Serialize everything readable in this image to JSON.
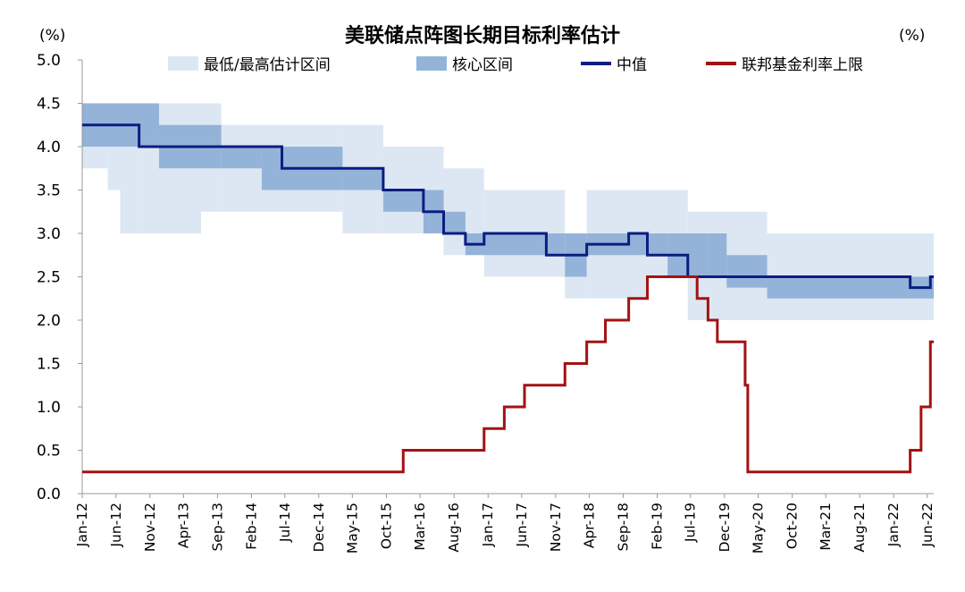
{
  "chart_data": {
    "type": "line",
    "title": "美联储点阵图长期目标利率估计",
    "ylabel_left": "(%)",
    "ylabel_right": "(%)",
    "ylim": [
      0,
      5
    ],
    "yticks": [
      "0.0",
      "0.5",
      "1.0",
      "1.5",
      "2.0",
      "2.5",
      "3.0",
      "3.5",
      "4.0",
      "4.5",
      "5.0"
    ],
    "x_range": [
      "2012-01-01",
      "2022-06-30"
    ],
    "x_ticks": [
      {
        "label": "Jan-12",
        "date": "2012-01-01"
      },
      {
        "label": "Jun-12",
        "date": "2012-06-01"
      },
      {
        "label": "Nov-12",
        "date": "2012-11-01"
      },
      {
        "label": "Apr-13",
        "date": "2013-04-01"
      },
      {
        "label": "Sep-13",
        "date": "2013-09-01"
      },
      {
        "label": "Feb-14",
        "date": "2014-02-01"
      },
      {
        "label": "Jul-14",
        "date": "2014-07-01"
      },
      {
        "label": "Dec-14",
        "date": "2014-12-01"
      },
      {
        "label": "May-15",
        "date": "2015-05-01"
      },
      {
        "label": "Oct-15",
        "date": "2015-10-01"
      },
      {
        "label": "Mar-16",
        "date": "2016-03-01"
      },
      {
        "label": "Aug-16",
        "date": "2016-08-01"
      },
      {
        "label": "Jan-17",
        "date": "2017-01-01"
      },
      {
        "label": "Jun-17",
        "date": "2017-06-01"
      },
      {
        "label": "Nov-17",
        "date": "2017-11-01"
      },
      {
        "label": "Apr-18",
        "date": "2018-04-01"
      },
      {
        "label": "Sep-18",
        "date": "2018-09-01"
      },
      {
        "label": "Feb-19",
        "date": "2019-02-01"
      },
      {
        "label": "Jul-19",
        "date": "2019-07-01"
      },
      {
        "label": "Dec-19",
        "date": "2019-12-01"
      },
      {
        "label": "May-20",
        "date": "2020-05-01"
      },
      {
        "label": "Oct-20",
        "date": "2020-10-01"
      },
      {
        "label": "Mar-21",
        "date": "2021-03-01"
      },
      {
        "label": "Aug-21",
        "date": "2021-08-01"
      },
      {
        "label": "Jan-22",
        "date": "2022-01-01"
      },
      {
        "label": "Jun-22",
        "date": "2022-06-01"
      }
    ],
    "grid": false,
    "legend_position": "top",
    "colors": {
      "range_full": "#dde7f3",
      "range_core": "#94b3d9",
      "median": "#0b1d82",
      "fed_funds": "#a31212"
    },
    "series": [
      {
        "name": "最低/最高估计区间",
        "kind": "band",
        "periods": [
          {
            "start": "2012-01-01",
            "end": "2012-04-25",
            "low": 3.75,
            "high": 4.5
          },
          {
            "start": "2012-04-25",
            "end": "2012-06-20",
            "low": 3.5,
            "high": 4.5
          },
          {
            "start": "2012-06-20",
            "end": "2012-09-13",
            "low": 3.0,
            "high": 4.5
          },
          {
            "start": "2012-09-13",
            "end": "2013-06-19",
            "low": 3.0,
            "high": 4.5
          },
          {
            "start": "2013-06-19",
            "end": "2013-09-18",
            "low": 3.25,
            "high": 4.5
          },
          {
            "start": "2013-09-18",
            "end": "2015-03-18",
            "low": 3.25,
            "high": 4.25
          },
          {
            "start": "2015-03-18",
            "end": "2015-06-17",
            "low": 3.0,
            "high": 4.25
          },
          {
            "start": "2015-06-17",
            "end": "2015-09-17",
            "low": 3.0,
            "high": 4.25
          },
          {
            "start": "2015-09-17",
            "end": "2016-06-15",
            "low": 3.0,
            "high": 4.0
          },
          {
            "start": "2016-06-15",
            "end": "2016-12-14",
            "low": 2.75,
            "high": 3.75
          },
          {
            "start": "2016-12-14",
            "end": "2017-12-13",
            "low": 2.5,
            "high": 3.5
          },
          {
            "start": "2017-12-13",
            "end": "2018-03-21",
            "low": 2.25,
            "high": 3.0
          },
          {
            "start": "2018-03-21",
            "end": "2018-12-19",
            "low": 2.25,
            "high": 3.5
          },
          {
            "start": "2018-12-19",
            "end": "2019-06-19",
            "low": 2.5,
            "high": 3.5
          },
          {
            "start": "2019-06-19",
            "end": "2020-06-10",
            "low": 2.0,
            "high": 3.25
          },
          {
            "start": "2020-06-10",
            "end": "2022-06-30",
            "low": 2.0,
            "high": 3.0
          }
        ]
      },
      {
        "name": "核心区间",
        "kind": "band",
        "periods": [
          {
            "start": "2012-01-01",
            "end": "2012-12-12",
            "low": 4.0,
            "high": 4.5
          },
          {
            "start": "2012-12-12",
            "end": "2013-09-18",
            "low": 3.75,
            "high": 4.25
          },
          {
            "start": "2013-09-18",
            "end": "2014-03-19",
            "low": 3.75,
            "high": 4.0
          },
          {
            "start": "2014-03-19",
            "end": "2015-03-18",
            "low": 3.5,
            "high": 4.0
          },
          {
            "start": "2015-03-18",
            "end": "2015-09-17",
            "low": 3.5,
            "high": 3.75
          },
          {
            "start": "2015-09-17",
            "end": "2016-03-16",
            "low": 3.25,
            "high": 3.5
          },
          {
            "start": "2016-03-16",
            "end": "2016-06-15",
            "low": 3.0,
            "high": 3.5
          },
          {
            "start": "2016-06-15",
            "end": "2016-09-21",
            "low": 3.0,
            "high": 3.25
          },
          {
            "start": "2016-09-21",
            "end": "2017-12-13",
            "low": 2.75,
            "high": 3.0
          },
          {
            "start": "2017-12-13",
            "end": "2018-03-21",
            "low": 2.5,
            "high": 3.0
          },
          {
            "start": "2018-03-21",
            "end": "2019-03-20",
            "low": 2.75,
            "high": 3.0
          },
          {
            "start": "2019-03-20",
            "end": "2019-09-18",
            "low": 2.5,
            "high": 3.0
          },
          {
            "start": "2019-09-18",
            "end": "2019-12-11",
            "low": 2.5,
            "high": 3.0
          },
          {
            "start": "2019-12-11",
            "end": "2020-06-10",
            "low": 2.375,
            "high": 2.75
          },
          {
            "start": "2020-06-10",
            "end": "2022-06-30",
            "low": 2.25,
            "high": 2.5
          }
        ]
      },
      {
        "name": "中值",
        "kind": "step",
        "points": [
          {
            "date": "2012-01-01",
            "value": 4.25
          },
          {
            "date": "2012-09-13",
            "value": 4.0
          },
          {
            "date": "2014-06-18",
            "value": 3.75
          },
          {
            "date": "2015-09-17",
            "value": 3.5
          },
          {
            "date": "2016-03-16",
            "value": 3.25
          },
          {
            "date": "2016-06-15",
            "value": 3.0
          },
          {
            "date": "2016-09-21",
            "value": 2.875
          },
          {
            "date": "2016-12-14",
            "value": 3.0
          },
          {
            "date": "2017-09-20",
            "value": 2.75
          },
          {
            "date": "2018-03-21",
            "value": 2.875
          },
          {
            "date": "2018-09-26",
            "value": 3.0
          },
          {
            "date": "2018-12-19",
            "value": 2.75
          },
          {
            "date": "2019-06-19",
            "value": 2.5
          },
          {
            "date": "2022-03-16",
            "value": 2.375
          },
          {
            "date": "2022-06-15",
            "value": 2.5
          },
          {
            "date": "2022-06-30",
            "value": 2.5
          }
        ]
      },
      {
        "name": "联邦基金利率上限",
        "kind": "step",
        "points": [
          {
            "date": "2012-01-01",
            "value": 0.25
          },
          {
            "date": "2015-12-16",
            "value": 0.5
          },
          {
            "date": "2016-12-14",
            "value": 0.75
          },
          {
            "date": "2017-03-15",
            "value": 1.0
          },
          {
            "date": "2017-06-14",
            "value": 1.25
          },
          {
            "date": "2017-12-13",
            "value": 1.5
          },
          {
            "date": "2018-03-21",
            "value": 1.75
          },
          {
            "date": "2018-06-13",
            "value": 2.0
          },
          {
            "date": "2018-09-26",
            "value": 2.25
          },
          {
            "date": "2018-12-19",
            "value": 2.5
          },
          {
            "date": "2019-07-31",
            "value": 2.25
          },
          {
            "date": "2019-09-18",
            "value": 2.0
          },
          {
            "date": "2019-10-30",
            "value": 1.75
          },
          {
            "date": "2020-03-03",
            "value": 1.25
          },
          {
            "date": "2020-03-15",
            "value": 0.25
          },
          {
            "date": "2022-03-16",
            "value": 0.5
          },
          {
            "date": "2022-05-04",
            "value": 1.0
          },
          {
            "date": "2022-06-15",
            "value": 1.75
          },
          {
            "date": "2022-06-30",
            "value": 1.75
          }
        ]
      }
    ]
  }
}
